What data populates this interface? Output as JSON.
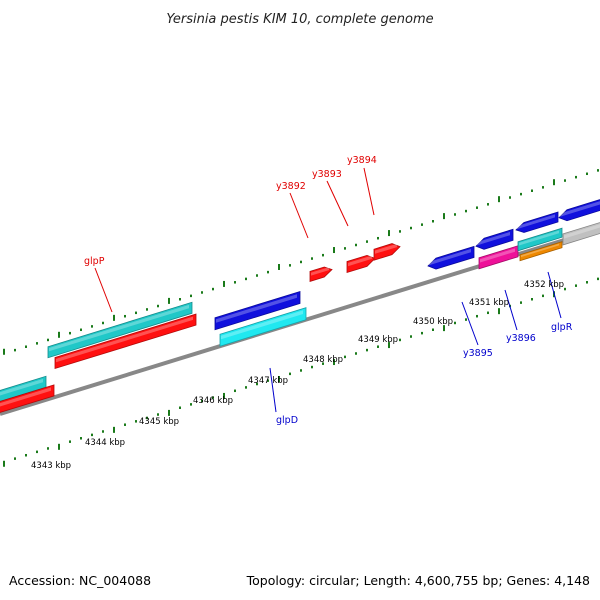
{
  "title": "Yersinia pestis KIM 10, complete genome",
  "footer": {
    "accession": "Accession: NC_004088",
    "summary": "Topology: circular; Length: 4,600,755 bp; Genes: 4,148"
  },
  "colors": {
    "backbone": "#888888",
    "tick": "#1a7a1a",
    "label_red": "#e00000",
    "label_blue": "#0000cc",
    "red": "#ff1010",
    "blue": "#1010dd",
    "cyan": "#20c8c8",
    "cyan_light": "#20e8f0",
    "magenta": "#ee1199",
    "orange": "#ee8800",
    "gray": "#c0c0c0"
  },
  "scale_labels": [
    "4343 kbp",
    "4344 kbp",
    "4345 kbp",
    "4346 kbp",
    "4347 kbp",
    "4348 kbp",
    "4349 kbp",
    "4350 kbp",
    "4351 kbp",
    "4352 kbp"
  ],
  "gene_labels": [
    {
      "text": "glpP",
      "color": "red"
    },
    {
      "text": "y3892",
      "color": "red"
    },
    {
      "text": "y3893",
      "color": "red"
    },
    {
      "text": "y3894",
      "color": "red"
    },
    {
      "text": "glpD",
      "color": "blue"
    },
    {
      "text": "y3895",
      "color": "blue"
    },
    {
      "text": "y3896",
      "color": "blue"
    },
    {
      "text": "glpR",
      "color": "blue"
    }
  ]
}
